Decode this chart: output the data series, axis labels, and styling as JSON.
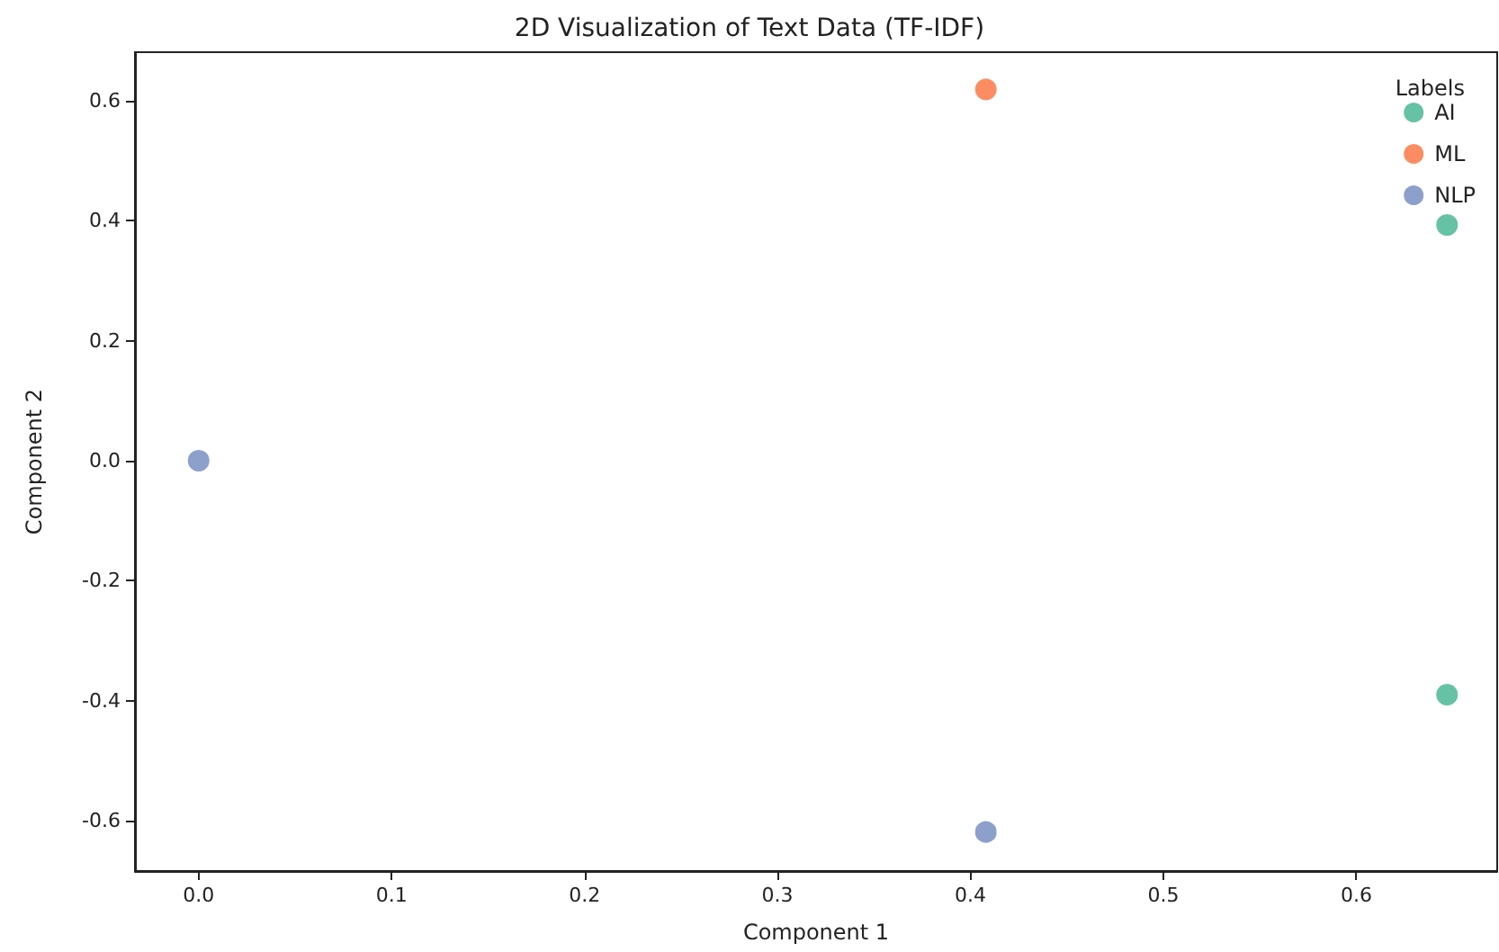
{
  "chart_data": {
    "type": "scatter",
    "title": "2D Visualization of Text Data (TF-IDF)",
    "xlabel": "Component 1",
    "ylabel": "Component 2",
    "legend_title": "Labels",
    "legend": "top right",
    "marker": "circle",
    "grid": false,
    "xlim": [
      -0.033,
      0.673
    ],
    "ylim": [
      -0.684,
      0.681
    ],
    "xticks": [
      {
        "value": 0,
        "label": "0.0"
      },
      0.1,
      0.2,
      0.3,
      0.4,
      0.5,
      0.6
    ],
    "yticks": [
      -0.6,
      -0.4,
      -0.2,
      {
        "value": 0,
        "label": "0.0"
      },
      0.2,
      0.4,
      0.6
    ],
    "series": [
      {
        "name": "AI",
        "color": "#66c2a5",
        "x": [
          0.647,
          0.647
        ],
        "values": [
          0.393,
          -0.39
        ]
      },
      {
        "name": "ML",
        "color": "#fc8d62",
        "x": [
          0.408
        ],
        "values": [
          0.619
        ]
      },
      {
        "name": "NLP",
        "color": "#8da0cb",
        "x": [
          0.0,
          0.408
        ],
        "values": [
          0.0,
          -0.619
        ]
      }
    ]
  }
}
